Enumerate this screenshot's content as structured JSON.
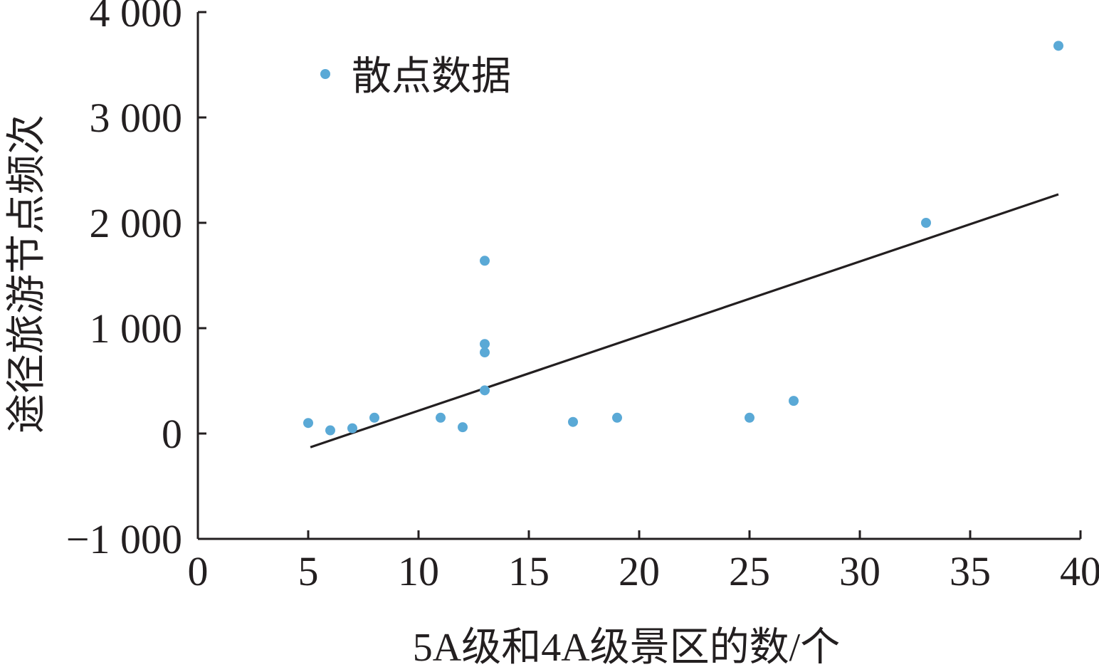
{
  "chart_data": {
    "type": "scatter",
    "title": "",
    "xlabel": "5A级和4A级景区的数/个",
    "ylabel": "途径旅游节点频次",
    "xlim": [
      0,
      40
    ],
    "ylim": [
      -1000,
      4000
    ],
    "x_ticks": [
      0,
      5,
      10,
      15,
      20,
      25,
      30,
      35,
      40
    ],
    "x_tick_labels": [
      "0",
      "5",
      "10",
      "15",
      "20",
      "25",
      "30",
      "35",
      "40"
    ],
    "y_ticks": [
      -1000,
      0,
      1000,
      2000,
      3000,
      4000
    ],
    "y_tick_labels": [
      "−1 000",
      "0",
      "1 000",
      "2 000",
      "3 000",
      "4 000"
    ],
    "legend": {
      "position": "top-left",
      "entries": [
        "散点数据"
      ]
    },
    "grid": false,
    "series": [
      {
        "name": "散点数据",
        "color": "#5aa9d6",
        "points": [
          {
            "x": 5,
            "y": 100
          },
          {
            "x": 6,
            "y": 30
          },
          {
            "x": 7,
            "y": 50
          },
          {
            "x": 8,
            "y": 150
          },
          {
            "x": 11,
            "y": 150
          },
          {
            "x": 12,
            "y": 60
          },
          {
            "x": 13,
            "y": 1640
          },
          {
            "x": 13,
            "y": 850
          },
          {
            "x": 13,
            "y": 770
          },
          {
            "x": 13,
            "y": 410
          },
          {
            "x": 17,
            "y": 110
          },
          {
            "x": 19,
            "y": 150
          },
          {
            "x": 25,
            "y": 150
          },
          {
            "x": 27,
            "y": 310
          },
          {
            "x": 33,
            "y": 2000
          },
          {
            "x": 39,
            "y": 3680
          }
        ]
      }
    ],
    "trendline": {
      "color": "#231f20",
      "from": {
        "x": 5.1,
        "y": -130
      },
      "to": {
        "x": 39,
        "y": 2270
      }
    },
    "axis_color": "#231f20"
  }
}
